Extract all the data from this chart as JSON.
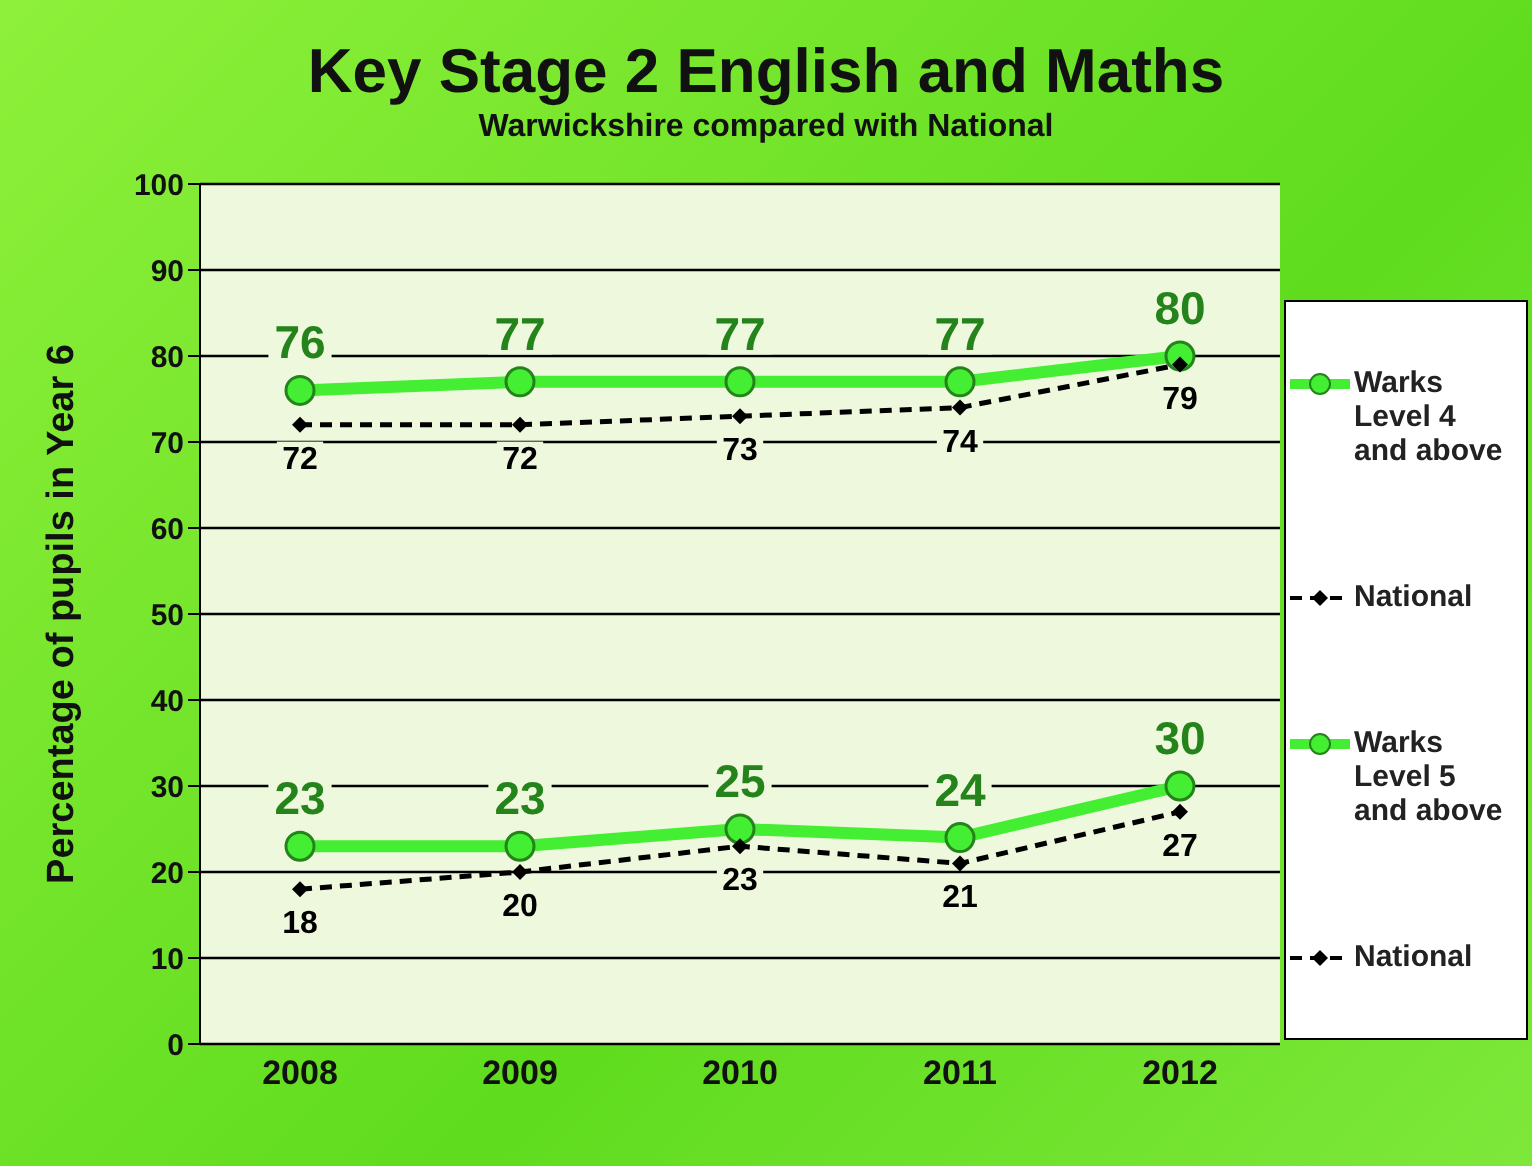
{
  "chart_data": {
    "type": "line",
    "title": "Key Stage 2 English and Maths",
    "subtitle": "Warwickshire compared with National",
    "ylabel": "Percentage of pupils in Year 6",
    "categories": [
      "2008",
      "2009",
      "2010",
      "2011",
      "2012"
    ],
    "series": [
      {
        "name": "Warks Level 4 and above",
        "color": "#44ee33",
        "values": [
          76,
          77,
          77,
          77,
          80
        ],
        "marker": "circle",
        "line_style": "solid"
      },
      {
        "name": "National",
        "color": "#000000",
        "values": [
          72,
          72,
          73,
          74,
          79
        ],
        "marker": "diamond",
        "line_style": "dashed"
      },
      {
        "name": "Warks Level 5 and above",
        "color": "#44ee33",
        "values": [
          23,
          23,
          25,
          24,
          30
        ],
        "marker": "circle",
        "line_style": "solid"
      },
      {
        "name": "National",
        "color": "#000000",
        "values": [
          18,
          20,
          23,
          21,
          27
        ],
        "marker": "diamond",
        "line_style": "dashed"
      }
    ],
    "ylim": [
      0,
      100
    ],
    "yticks": [
      0,
      10,
      20,
      30,
      40,
      50,
      60,
      70,
      80,
      90,
      100
    ],
    "grid": "y",
    "legend": "right",
    "data_labels": true
  }
}
